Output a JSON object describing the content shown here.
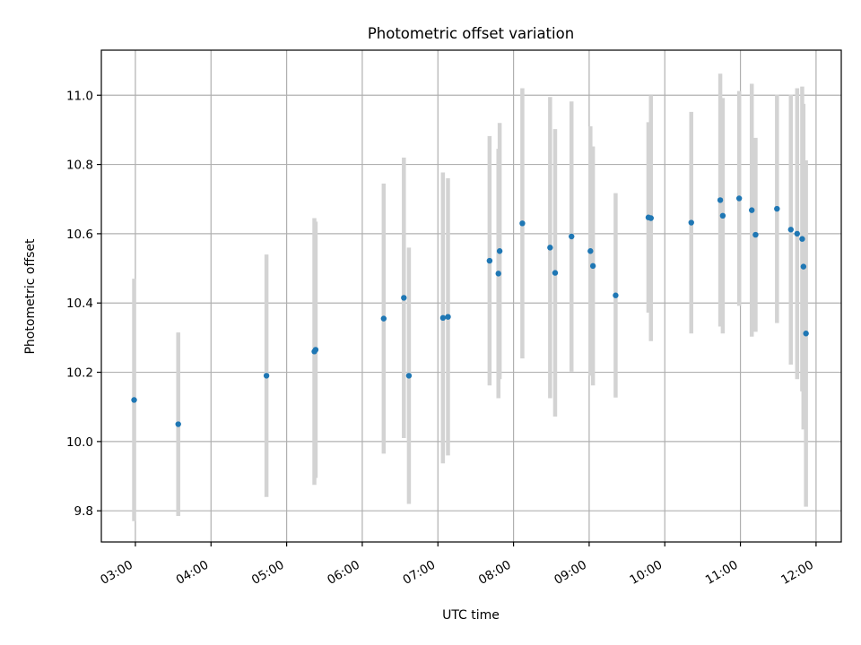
{
  "chart_data": {
    "type": "scatter",
    "title": "Photometric offset variation",
    "xlabel": "UTC time",
    "ylabel": "Photometric offset",
    "x_unit": "UTC time (HH:MM)",
    "xlim": [
      "02:33",
      "12:20"
    ],
    "ylim": [
      9.71,
      11.13
    ],
    "x_ticks": [
      "03:00",
      "04:00",
      "05:00",
      "06:00",
      "07:00",
      "08:00",
      "09:00",
      "10:00",
      "11:00",
      "12:00"
    ],
    "y_ticks": [
      "9.8",
      "10.0",
      "10.2",
      "10.4",
      "10.6",
      "10.8",
      "11.0"
    ],
    "grid": true,
    "colors": {
      "marker": "#1f77b4",
      "error_bar": "#d3d3d3"
    },
    "series": [
      {
        "points": [
          {
            "x": "02:59",
            "y": 10.12,
            "err": 0.35
          },
          {
            "x": "03:34",
            "y": 10.05,
            "err": 0.265
          },
          {
            "x": "04:44",
            "y": 10.19,
            "err": 0.35
          },
          {
            "x": "05:22",
            "y": 10.26,
            "err": 0.385
          },
          {
            "x": "05:23",
            "y": 10.265,
            "err": 0.37
          },
          {
            "x": "06:17",
            "y": 10.355,
            "err": 0.39
          },
          {
            "x": "06:33",
            "y": 10.415,
            "err": 0.405
          },
          {
            "x": "06:37",
            "y": 10.19,
            "err": 0.37
          },
          {
            "x": "07:04",
            "y": 10.357,
            "err": 0.42
          },
          {
            "x": "07:08",
            "y": 10.36,
            "err": 0.4
          },
          {
            "x": "07:41",
            "y": 10.522,
            "err": 0.36
          },
          {
            "x": "07:48",
            "y": 10.485,
            "err": 0.36
          },
          {
            "x": "07:49",
            "y": 10.55,
            "err": 0.37
          },
          {
            "x": "08:07",
            "y": 10.63,
            "err": 0.39
          },
          {
            "x": "08:29",
            "y": 10.56,
            "err": 0.435
          },
          {
            "x": "08:33",
            "y": 10.487,
            "err": 0.415
          },
          {
            "x": "08:46",
            "y": 10.592,
            "err": 0.39
          },
          {
            "x": "09:01",
            "y": 10.55,
            "err": 0.36
          },
          {
            "x": "09:03",
            "y": 10.507,
            "err": 0.345
          },
          {
            "x": "09:21",
            "y": 10.422,
            "err": 0.295
          },
          {
            "x": "09:47",
            "y": 10.647,
            "err": 0.275
          },
          {
            "x": "09:49",
            "y": 10.645,
            "err": 0.355
          },
          {
            "x": "10:21",
            "y": 10.632,
            "err": 0.32
          },
          {
            "x": "10:44",
            "y": 10.697,
            "err": 0.365
          },
          {
            "x": "10:46",
            "y": 10.652,
            "err": 0.34
          },
          {
            "x": "10:59",
            "y": 10.702,
            "err": 0.31
          },
          {
            "x": "11:09",
            "y": 10.668,
            "err": 0.365
          },
          {
            "x": "11:12",
            "y": 10.597,
            "err": 0.28
          },
          {
            "x": "11:29",
            "y": 10.672,
            "err": 0.33
          },
          {
            "x": "11:40",
            "y": 10.612,
            "err": 0.39
          },
          {
            "x": "11:45",
            "y": 10.6,
            "err": 0.42
          },
          {
            "x": "11:49",
            "y": 10.585,
            "err": 0.44
          },
          {
            "x": "11:50",
            "y": 10.505,
            "err": 0.47
          },
          {
            "x": "11:52",
            "y": 10.312,
            "err": 0.5
          }
        ]
      }
    ]
  }
}
